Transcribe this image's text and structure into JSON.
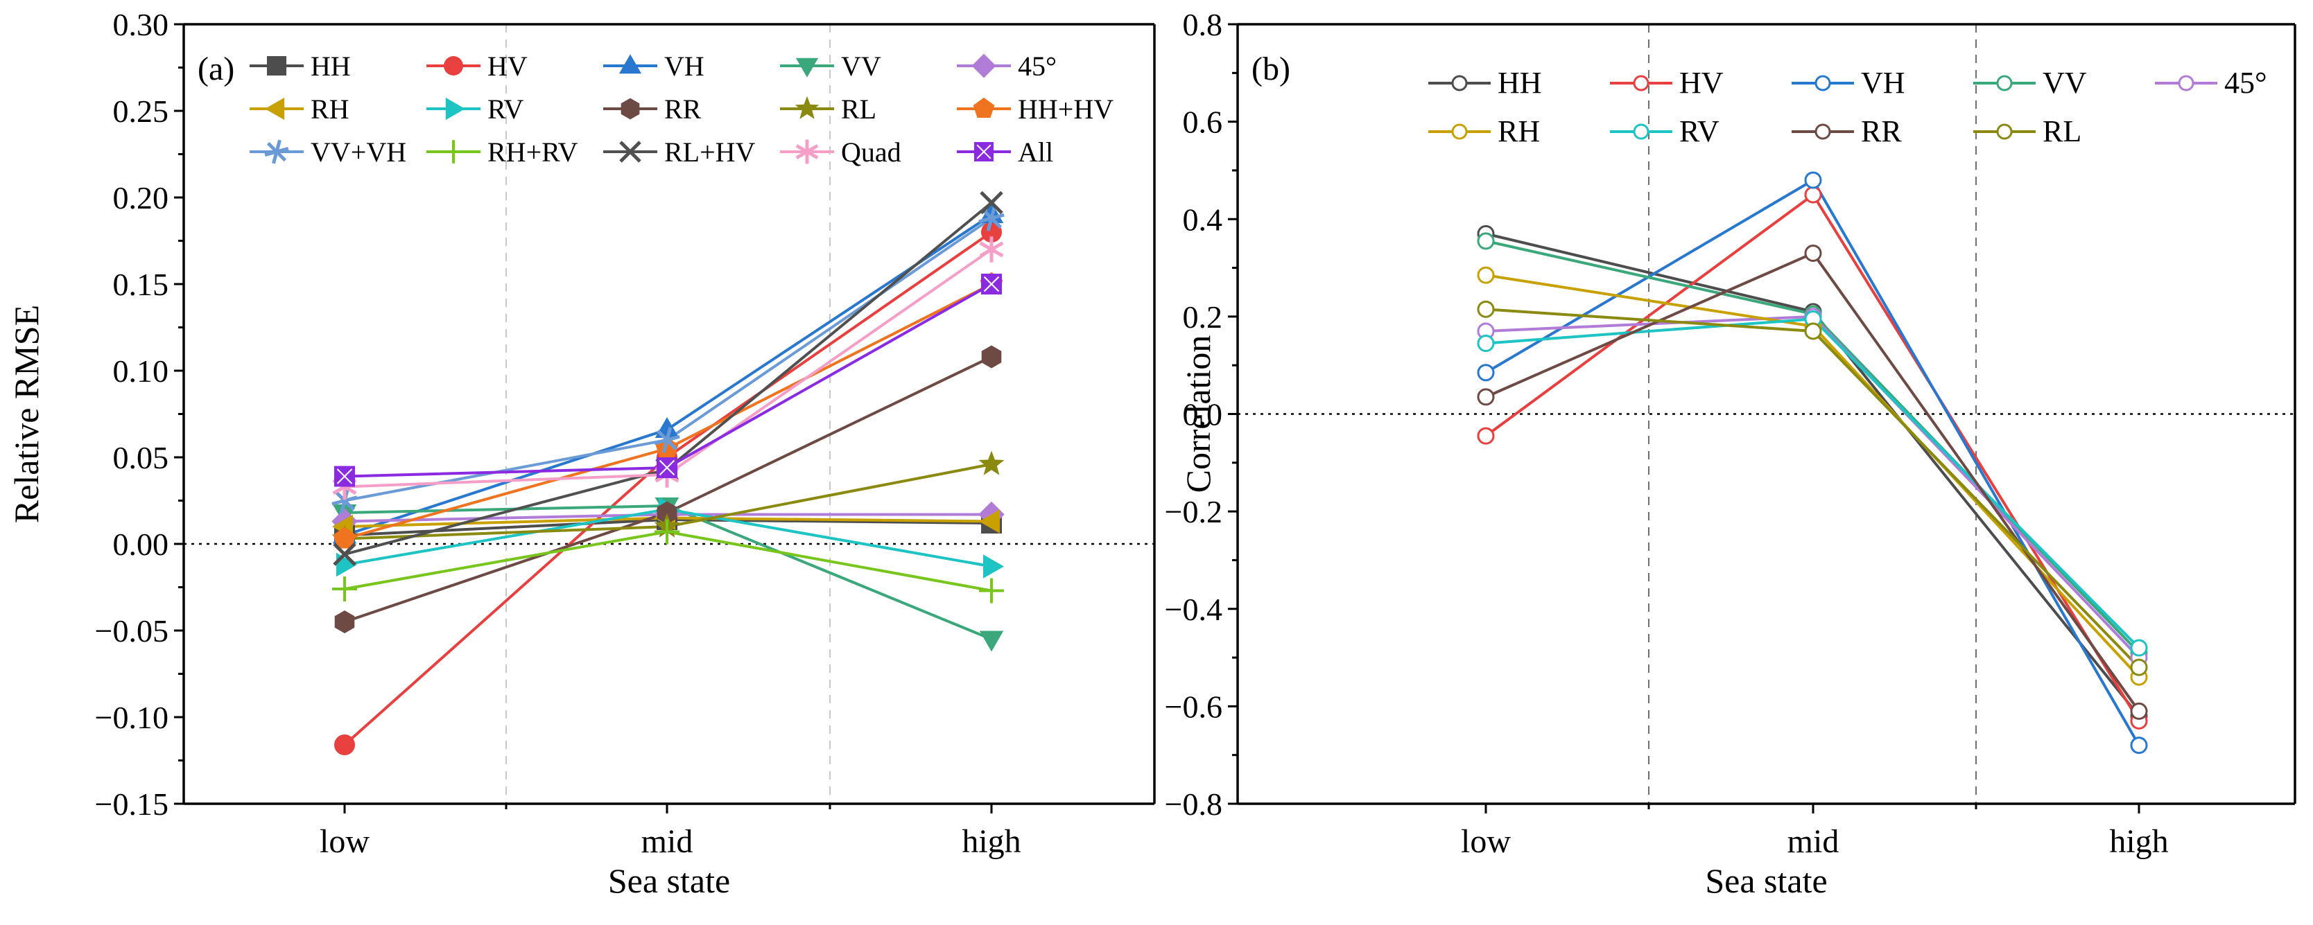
{
  "figure": {
    "panels": [
      "(a)",
      "(b)"
    ]
  },
  "chart_data": [
    {
      "type": "line",
      "panel_label": "(a)",
      "title": "",
      "xlabel": "Sea state",
      "ylabel": "Relative RMSE",
      "categories": [
        "low",
        "mid",
        "high"
      ],
      "ylim": [
        -0.15,
        0.3
      ],
      "yticks": [
        -0.15,
        -0.1,
        -0.05,
        0.0,
        0.05,
        0.1,
        0.15,
        0.2,
        0.25,
        0.3
      ],
      "ytick_labels": [
        "−0.15",
        "−0.10",
        "−0.05",
        "0.00",
        "0.05",
        "0.10",
        "0.15",
        "0.20",
        "0.25",
        "0.30"
      ],
      "reference_line_y": 0,
      "legend_position": "top-left",
      "legend_columns": 5,
      "series": [
        {
          "name": "HH",
          "marker": "square",
          "color": "#4d4d4d",
          "values": [
            0.005,
            0.014,
            0.012
          ]
        },
        {
          "name": "HV",
          "marker": "circle",
          "color": "#e8403f",
          "values": [
            -0.116,
            0.05,
            0.18
          ]
        },
        {
          "name": "VH",
          "marker": "triangle-up",
          "color": "#2878d0",
          "values": [
            0.005,
            0.066,
            0.19
          ]
        },
        {
          "name": "VV",
          "marker": "triangle-down",
          "color": "#3aa87a",
          "values": [
            0.018,
            0.022,
            -0.055
          ]
        },
        {
          "name": "45°",
          "marker": "diamond",
          "color": "#b07cd8",
          "values": [
            0.013,
            0.017,
            0.017
          ]
        },
        {
          "name": "RH",
          "marker": "triangle-left",
          "color": "#c8a000",
          "values": [
            0.01,
            0.015,
            0.013
          ]
        },
        {
          "name": "RV",
          "marker": "triangle-right",
          "color": "#1ec3c3",
          "values": [
            -0.012,
            0.02,
            -0.013
          ]
        },
        {
          "name": "RR",
          "marker": "hexagon",
          "color": "#6e4a44",
          "values": [
            -0.045,
            0.018,
            0.108
          ]
        },
        {
          "name": "RL",
          "marker": "star",
          "color": "#8a8a10",
          "values": [
            0.003,
            0.01,
            0.046
          ]
        },
        {
          "name": "HH+HV",
          "marker": "pentagon",
          "color": "#f0731f",
          "values": [
            0.003,
            0.055,
            0.15
          ]
        },
        {
          "name": "VV+VH",
          "marker": "asterisk",
          "color": "#6a9bd6",
          "values": [
            0.025,
            0.06,
            0.188
          ]
        },
        {
          "name": "RH+RV",
          "marker": "plus",
          "color": "#78c51e",
          "values": [
            -0.026,
            0.007,
            -0.027
          ]
        },
        {
          "name": "RL+HV",
          "marker": "cross",
          "color": "#505050",
          "values": [
            -0.006,
            0.043,
            0.197
          ]
        },
        {
          "name": "Quad",
          "marker": "asterisk6",
          "color": "#f59ec8",
          "values": [
            0.033,
            0.04,
            0.17
          ]
        },
        {
          "name": "All",
          "marker": "squarex",
          "color": "#8a2be2",
          "values": [
            0.039,
            0.044,
            0.15
          ]
        }
      ]
    },
    {
      "type": "line",
      "panel_label": "(b)",
      "title": "",
      "xlabel": "Sea state",
      "ylabel": "Correlation",
      "categories": [
        "low",
        "mid",
        "high"
      ],
      "ylim": [
        -0.8,
        0.8
      ],
      "yticks": [
        -0.8,
        -0.6,
        -0.4,
        -0.2,
        0.0,
        0.2,
        0.4,
        0.6,
        0.8
      ],
      "ytick_labels": [
        "−0.8",
        "−0.6",
        "−0.4",
        "−0.2",
        "0.0",
        "0.2",
        "0.4",
        "0.6",
        "0.8"
      ],
      "reference_line_y": 0,
      "legend_position": "top",
      "legend_columns": 5,
      "series": [
        {
          "name": "HH",
          "marker": "open-circle",
          "color": "#4d4d4d",
          "values": [
            0.37,
            0.21,
            -0.62
          ]
        },
        {
          "name": "HV",
          "marker": "open-circle",
          "color": "#e8403f",
          "values": [
            -0.045,
            0.45,
            -0.63
          ]
        },
        {
          "name": "VH",
          "marker": "open-circle",
          "color": "#2878d0",
          "values": [
            0.085,
            0.48,
            -0.68
          ]
        },
        {
          "name": "VV",
          "marker": "open-circle",
          "color": "#3aa87a",
          "values": [
            0.355,
            0.205,
            -0.49
          ]
        },
        {
          "name": "45°",
          "marker": "open-circle",
          "color": "#b07cd8",
          "values": [
            0.17,
            0.2,
            -0.5
          ]
        },
        {
          "name": "RH",
          "marker": "open-circle",
          "color": "#c8a000",
          "values": [
            0.285,
            0.18,
            -0.54
          ]
        },
        {
          "name": "RV",
          "marker": "open-circle",
          "color": "#1ec3c3",
          "values": [
            0.145,
            0.195,
            -0.48
          ]
        },
        {
          "name": "RR",
          "marker": "open-circle",
          "color": "#6e4a44",
          "values": [
            0.035,
            0.33,
            -0.61
          ]
        },
        {
          "name": "RL",
          "marker": "open-circle",
          "color": "#8a8a10",
          "values": [
            0.215,
            0.17,
            -0.52
          ]
        }
      ]
    }
  ]
}
